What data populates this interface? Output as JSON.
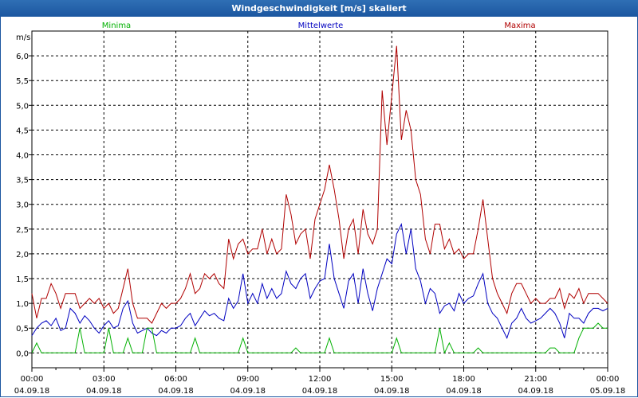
{
  "window": {
    "title": "Windgeschwindigkeit [m/s] skaliert"
  },
  "chart_data": {
    "type": "line",
    "title": "Windgeschwindigkeit [m/s] skaliert",
    "ylabel": "m/s",
    "ylim": [
      -0.3,
      6.5
    ],
    "xlim_hours": [
      0,
      24
    ],
    "y_ticks": [
      {
        "value": 0.0,
        "label": "0,0"
      },
      {
        "value": 0.5,
        "label": "0,5"
      },
      {
        "value": 1.0,
        "label": "1,0"
      },
      {
        "value": 1.5,
        "label": "1,5"
      },
      {
        "value": 2.0,
        "label": "2,0"
      },
      {
        "value": 2.5,
        "label": "2,5"
      },
      {
        "value": 3.0,
        "label": "3,0"
      },
      {
        "value": 3.5,
        "label": "3,5"
      },
      {
        "value": 4.0,
        "label": "4,0"
      },
      {
        "value": 4.5,
        "label": "4,5"
      },
      {
        "value": 5.0,
        "label": "5,0"
      },
      {
        "value": 5.5,
        "label": "5,5"
      },
      {
        "value": 6.0,
        "label": "6,0"
      }
    ],
    "x_ticks": [
      {
        "hour": 0,
        "time": "00:00",
        "date": "04.09.18"
      },
      {
        "hour": 3,
        "time": "03:00",
        "date": "04.09.18"
      },
      {
        "hour": 6,
        "time": "06:00",
        "date": "04.09.18"
      },
      {
        "hour": 9,
        "time": "09:00",
        "date": "04.09.18"
      },
      {
        "hour": 12,
        "time": "12:00",
        "date": "04.09.18"
      },
      {
        "hour": 15,
        "time": "15:00",
        "date": "04.09.18"
      },
      {
        "hour": 18,
        "time": "18:00",
        "date": "04.09.18"
      },
      {
        "hour": 21,
        "time": "21:00",
        "date": "04.09.18"
      },
      {
        "hour": 24,
        "time": "00:00",
        "date": "05.09.18"
      }
    ],
    "legend": [
      {
        "name": "Minima",
        "color": "#00b000"
      },
      {
        "name": "Mittelwerte",
        "color": "#0000c0"
      },
      {
        "name": "Maxima",
        "color": "#b00000"
      }
    ],
    "series": [
      {
        "name": "Maxima",
        "color": "#b00000",
        "hours": [
          0,
          0.2,
          0.4,
          0.6,
          0.8,
          1.0,
          1.2,
          1.4,
          1.6,
          1.8,
          2.0,
          2.2,
          2.4,
          2.6,
          2.8,
          3.0,
          3.2,
          3.4,
          3.6,
          3.8,
          4.0,
          4.2,
          4.4,
          4.6,
          4.8,
          5.0,
          5.2,
          5.4,
          5.6,
          5.8,
          6.0,
          6.2,
          6.4,
          6.6,
          6.8,
          7.0,
          7.2,
          7.4,
          7.6,
          7.8,
          8.0,
          8.2,
          8.4,
          8.6,
          8.8,
          9.0,
          9.2,
          9.4,
          9.6,
          9.8,
          10.0,
          10.2,
          10.4,
          10.6,
          10.8,
          11.0,
          11.2,
          11.4,
          11.6,
          11.8,
          12.0,
          12.2,
          12.4,
          12.6,
          12.8,
          13.0,
          13.2,
          13.4,
          13.6,
          13.8,
          14.0,
          14.2,
          14.4,
          14.6,
          14.8,
          15.0,
          15.2,
          15.4,
          15.6,
          15.8,
          16.0,
          16.2,
          16.4,
          16.6,
          16.8,
          17.0,
          17.2,
          17.4,
          17.6,
          17.8,
          18.0,
          18.2,
          18.4,
          18.6,
          18.8,
          19.0,
          19.2,
          19.4,
          19.6,
          19.8,
          20.0,
          20.2,
          20.4,
          20.6,
          20.8,
          21.0,
          21.2,
          21.4,
          21.6,
          21.8,
          22.0,
          22.2,
          22.4,
          22.6,
          22.8,
          23.0,
          23.2,
          23.4,
          23.6,
          23.8,
          24.0
        ],
        "values": [
          1.2,
          0.7,
          1.1,
          1.1,
          1.4,
          1.2,
          0.9,
          1.2,
          1.2,
          1.2,
          0.9,
          1.0,
          1.1,
          1.0,
          1.1,
          0.9,
          1.0,
          0.8,
          0.9,
          1.3,
          1.7,
          1.0,
          0.7,
          0.7,
          0.7,
          0.6,
          0.8,
          1.0,
          0.9,
          1.0,
          1.0,
          1.1,
          1.3,
          1.6,
          1.2,
          1.3,
          1.6,
          1.5,
          1.6,
          1.4,
          1.3,
          2.3,
          1.9,
          2.2,
          2.3,
          2.0,
          2.1,
          2.1,
          2.5,
          2.0,
          2.3,
          2.0,
          2.1,
          3.2,
          2.8,
          2.2,
          2.4,
          2.5,
          1.9,
          2.7,
          3.0,
          3.3,
          3.8,
          3.3,
          2.7,
          1.9,
          2.5,
          2.7,
          2.0,
          2.9,
          2.4,
          2.2,
          2.5,
          5.3,
          4.2,
          5.2,
          6.2,
          4.3,
          4.9,
          4.5,
          3.5,
          3.2,
          2.3,
          2.0,
          2.6,
          2.6,
          2.1,
          2.3,
          2.0,
          2.1,
          1.9,
          2.0,
          2.0,
          2.5,
          3.1,
          2.3,
          1.5,
          1.2,
          1.0,
          0.8,
          1.2,
          1.4,
          1.4,
          1.2,
          1.0,
          1.1,
          1.0,
          1.0,
          1.1,
          1.1,
          1.3,
          0.9,
          1.2,
          1.1,
          1.3,
          1.0,
          1.2,
          1.2,
          1.2,
          1.1,
          1.0
        ]
      },
      {
        "name": "Mittelwerte",
        "color": "#0000c0",
        "hours": [
          0,
          0.2,
          0.4,
          0.6,
          0.8,
          1.0,
          1.2,
          1.4,
          1.6,
          1.8,
          2.0,
          2.2,
          2.4,
          2.6,
          2.8,
          3.0,
          3.2,
          3.4,
          3.6,
          3.8,
          4.0,
          4.2,
          4.4,
          4.6,
          4.8,
          5.0,
          5.2,
          5.4,
          5.6,
          5.8,
          6.0,
          6.2,
          6.4,
          6.6,
          6.8,
          7.0,
          7.2,
          7.4,
          7.6,
          7.8,
          8.0,
          8.2,
          8.4,
          8.6,
          8.8,
          9.0,
          9.2,
          9.4,
          9.6,
          9.8,
          10.0,
          10.2,
          10.4,
          10.6,
          10.8,
          11.0,
          11.2,
          11.4,
          11.6,
          11.8,
          12.0,
          12.2,
          12.4,
          12.6,
          12.8,
          13.0,
          13.2,
          13.4,
          13.6,
          13.8,
          14.0,
          14.2,
          14.4,
          14.6,
          14.8,
          15.0,
          15.2,
          15.4,
          15.6,
          15.8,
          16.0,
          16.2,
          16.4,
          16.6,
          16.8,
          17.0,
          17.2,
          17.4,
          17.6,
          17.8,
          18.0,
          18.2,
          18.4,
          18.6,
          18.8,
          19.0,
          19.2,
          19.4,
          19.6,
          19.8,
          20.0,
          20.2,
          20.4,
          20.6,
          20.8,
          21.0,
          21.2,
          21.4,
          21.6,
          21.8,
          22.0,
          22.2,
          22.4,
          22.6,
          22.8,
          23.0,
          23.2,
          23.4,
          23.6,
          23.8,
          24.0
        ],
        "values": [
          0.35,
          0.5,
          0.6,
          0.65,
          0.55,
          0.7,
          0.45,
          0.5,
          0.9,
          0.8,
          0.6,
          0.75,
          0.65,
          0.5,
          0.4,
          0.55,
          0.65,
          0.5,
          0.55,
          0.9,
          1.05,
          0.6,
          0.4,
          0.45,
          0.5,
          0.4,
          0.35,
          0.45,
          0.4,
          0.5,
          0.5,
          0.55,
          0.7,
          0.8,
          0.55,
          0.7,
          0.85,
          0.75,
          0.8,
          0.7,
          0.65,
          1.1,
          0.9,
          1.05,
          1.6,
          1.0,
          1.2,
          1.0,
          1.4,
          1.1,
          1.3,
          1.1,
          1.2,
          1.65,
          1.4,
          1.3,
          1.5,
          1.6,
          1.1,
          1.3,
          1.45,
          1.5,
          2.2,
          1.5,
          1.2,
          0.9,
          1.45,
          1.6,
          1.0,
          1.7,
          1.2,
          0.85,
          1.3,
          1.6,
          1.9,
          1.8,
          2.4,
          2.6,
          2.0,
          2.5,
          1.7,
          1.45,
          1.0,
          1.3,
          1.2,
          0.8,
          0.95,
          1.0,
          0.85,
          1.2,
          1.0,
          1.1,
          1.15,
          1.4,
          1.6,
          1.0,
          0.8,
          0.7,
          0.5,
          0.3,
          0.6,
          0.7,
          0.9,
          0.7,
          0.6,
          0.65,
          0.7,
          0.8,
          0.9,
          0.8,
          0.6,
          0.3,
          0.8,
          0.7,
          0.7,
          0.6,
          0.8,
          0.9,
          0.9,
          0.85,
          0.9
        ]
      },
      {
        "name": "Minima",
        "color": "#00b000",
        "hours": [
          0,
          0.2,
          0.4,
          0.6,
          0.8,
          1.0,
          1.2,
          1.4,
          1.6,
          1.8,
          2.0,
          2.2,
          2.4,
          2.6,
          2.8,
          3.0,
          3.2,
          3.4,
          3.6,
          3.8,
          4.0,
          4.2,
          4.4,
          4.6,
          4.8,
          5.0,
          5.2,
          5.4,
          5.6,
          5.8,
          6.0,
          6.2,
          6.4,
          6.6,
          6.8,
          7.0,
          7.2,
          7.4,
          7.6,
          7.8,
          8.0,
          8.2,
          8.4,
          8.6,
          8.8,
          9.0,
          9.2,
          9.4,
          9.6,
          9.8,
          10.0,
          10.2,
          10.4,
          10.6,
          10.8,
          11.0,
          11.2,
          11.4,
          11.6,
          11.8,
          12.0,
          12.2,
          12.4,
          12.6,
          12.8,
          13.0,
          13.2,
          13.4,
          13.6,
          13.8,
          14.0,
          14.2,
          14.4,
          14.6,
          14.8,
          15.0,
          15.2,
          15.4,
          15.6,
          15.8,
          16.0,
          16.2,
          16.4,
          16.6,
          16.8,
          17.0,
          17.2,
          17.4,
          17.6,
          17.8,
          18.0,
          18.2,
          18.4,
          18.6,
          18.8,
          19.0,
          19.2,
          19.4,
          19.6,
          19.8,
          20.0,
          20.2,
          20.4,
          20.6,
          20.8,
          21.0,
          21.2,
          21.4,
          21.6,
          21.8,
          22.0,
          22.2,
          22.4,
          22.6,
          22.8,
          23.0,
          23.2,
          23.4,
          23.6,
          23.8,
          24.0
        ],
        "values": [
          0.0,
          0.2,
          0.0,
          0.0,
          0.0,
          0.0,
          0.0,
          0.0,
          0.0,
          0.0,
          0.5,
          0.0,
          0.0,
          0.0,
          0.0,
          0.0,
          0.5,
          0.0,
          0.0,
          0.0,
          0.3,
          0.0,
          0.0,
          0.0,
          0.5,
          0.5,
          0.0,
          0.0,
          0.0,
          0.0,
          0.0,
          0.0,
          0.0,
          0.0,
          0.3,
          0.0,
          0.0,
          0.0,
          0.0,
          0.0,
          0.0,
          0.0,
          0.0,
          0.0,
          0.3,
          0.0,
          0.0,
          0.0,
          0.0,
          0.0,
          0.0,
          0.0,
          0.0,
          0.0,
          0.0,
          0.1,
          0.0,
          0.0,
          0.0,
          0.0,
          0.0,
          0.0,
          0.3,
          0.0,
          0.0,
          0.0,
          0.0,
          0.0,
          0.0,
          0.0,
          0.0,
          0.0,
          0.0,
          0.0,
          0.0,
          0.0,
          0.3,
          0.0,
          0.0,
          0.0,
          0.0,
          0.0,
          0.0,
          0.0,
          0.0,
          0.5,
          0.0,
          0.2,
          0.0,
          0.0,
          0.0,
          0.0,
          0.0,
          0.1,
          0.0,
          0.0,
          0.0,
          0.0,
          0.0,
          0.0,
          0.0,
          0.0,
          0.0,
          0.0,
          0.0,
          0.0,
          0.0,
          0.0,
          0.1,
          0.1,
          0.0,
          0.0,
          0.0,
          0.0,
          0.3,
          0.5,
          0.5,
          0.5,
          0.6,
          0.5,
          0.5
        ]
      }
    ]
  }
}
